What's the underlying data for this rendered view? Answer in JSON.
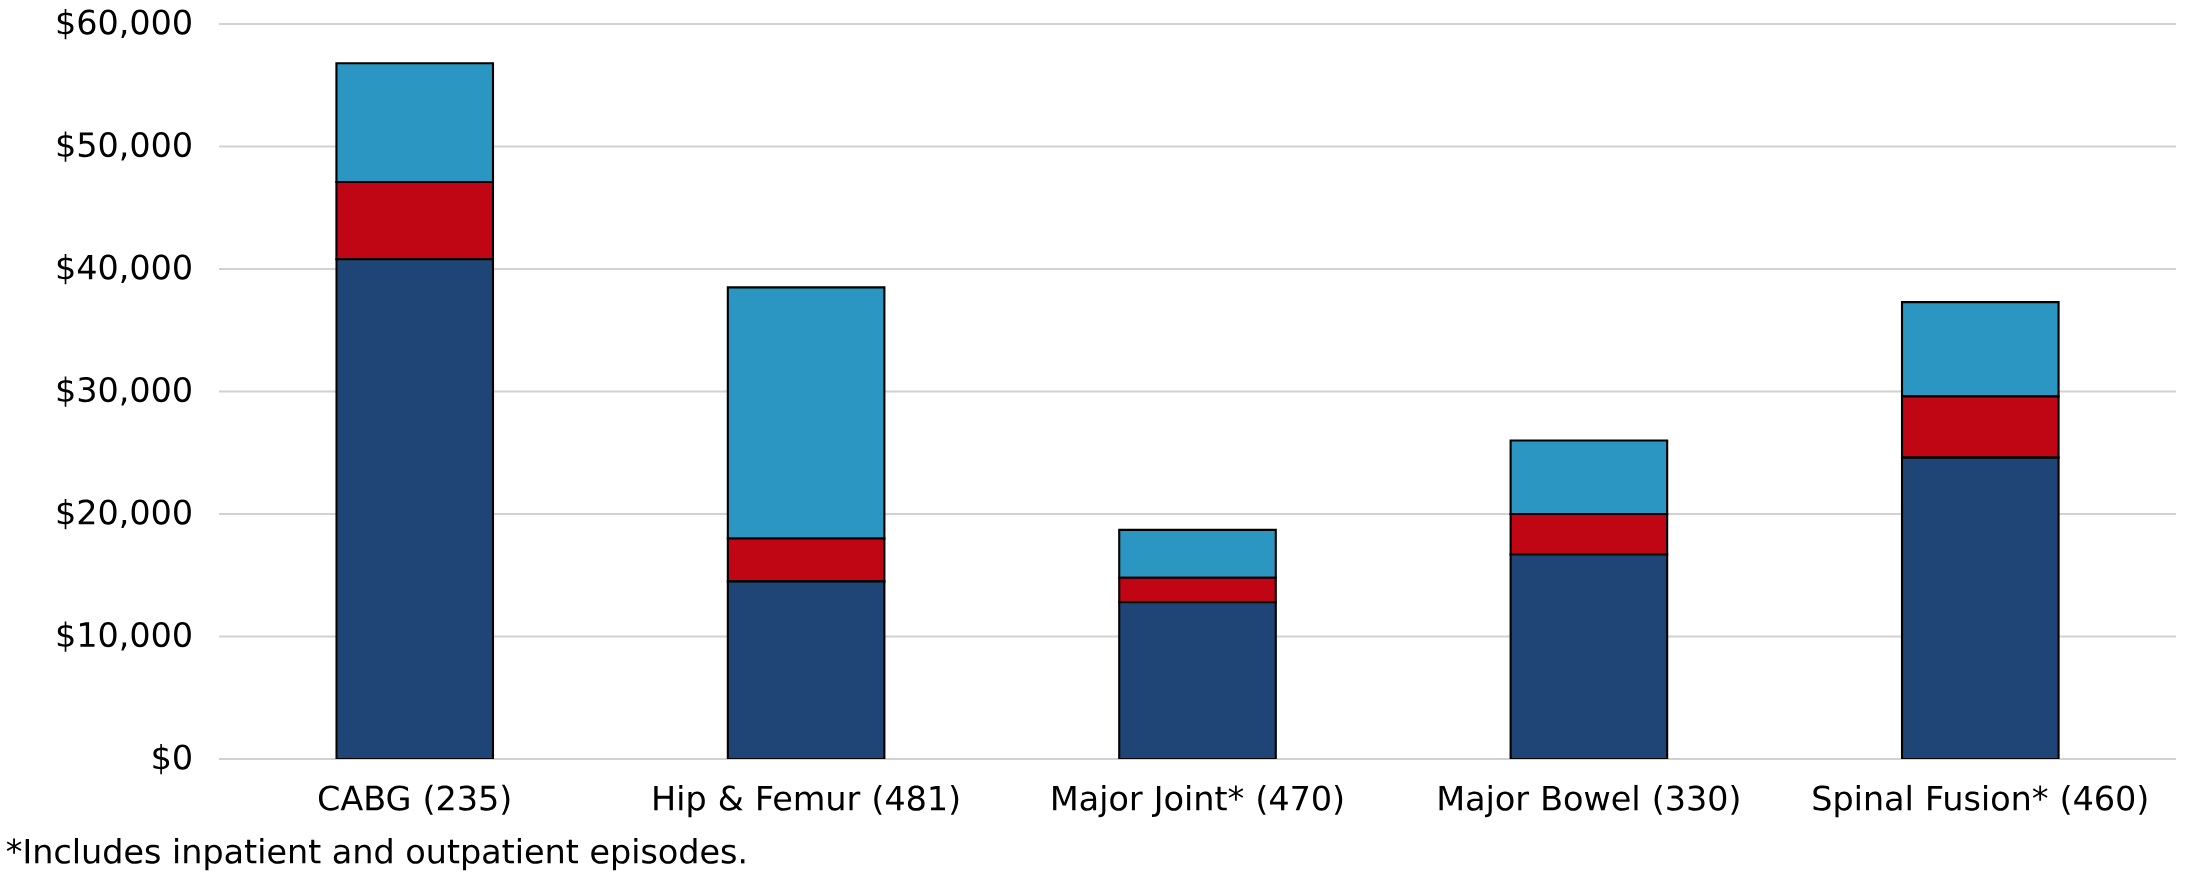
{
  "chart_data": {
    "type": "bar",
    "stacked": true,
    "categories": [
      "CABG (235)",
      "Hip & Femur (481)",
      "Major Joint* (470)",
      "Major Bowel (330)",
      "Spinal Fusion* (460)"
    ],
    "series": [
      {
        "color": "#1f4576",
        "values": [
          40800,
          14500,
          12800,
          16700,
          24600
        ]
      },
      {
        "color": "#c00515",
        "values": [
          6300,
          3500,
          2000,
          3300,
          5000
        ]
      },
      {
        "color": "#2b96c1",
        "values": [
          9700,
          20500,
          3900,
          6000,
          7700
        ]
      }
    ],
    "ylim": [
      0,
      60000
    ],
    "yticks": [
      {
        "value": 0,
        "label": "$0"
      },
      {
        "value": 10000,
        "label": "$10,000"
      },
      {
        "value": 20000,
        "label": "$20,000"
      },
      {
        "value": 30000,
        "label": "$30,000"
      },
      {
        "value": 40000,
        "label": "$40,000"
      },
      {
        "value": 50000,
        "label": "$50,000"
      },
      {
        "value": 60000,
        "label": "$60,000"
      }
    ],
    "grid": "y",
    "annotations": [
      "*Includes inpatient and outpatient episodes."
    ]
  }
}
